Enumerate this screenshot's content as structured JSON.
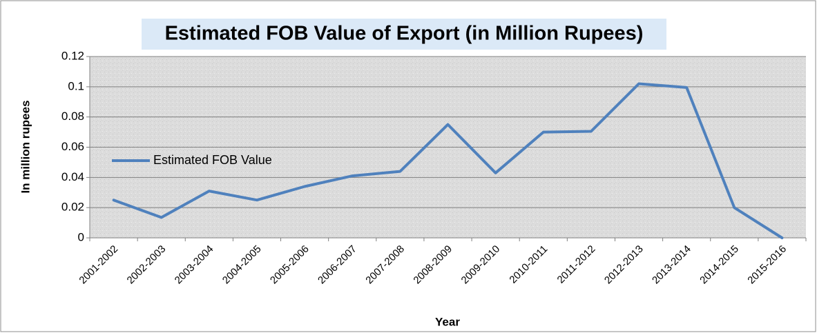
{
  "chart_data": {
    "type": "line",
    "title": "Estimated FOB Value of Export (in Million Rupees)",
    "x_label": "Year",
    "y_label": "In million rupees",
    "categories": [
      "2001-2002",
      "2002-2003",
      "2003-2004",
      "2004-2005",
      "2005-2006",
      "2006-2007",
      "2007-2008",
      "2008-2009",
      "2009-2010",
      "2010-2011",
      "2011-2012",
      "2012-2013",
      "2013-2014",
      "2014-2015",
      "2015-2016"
    ],
    "series": [
      {
        "name": "Estimated FOB Value",
        "color": "#4f81bd",
        "values": [
          0.025,
          0.0135,
          0.031,
          0.025,
          0.034,
          0.041,
          0.044,
          0.075,
          0.043,
          0.07,
          0.0705,
          0.102,
          0.0995,
          0.02,
          0.0
        ]
      }
    ],
    "ylim": [
      0,
      0.12
    ],
    "yticks": [
      0,
      0.02,
      0.04,
      0.06,
      0.08,
      0.1,
      0.12
    ],
    "grid": true,
    "legend": "left"
  }
}
